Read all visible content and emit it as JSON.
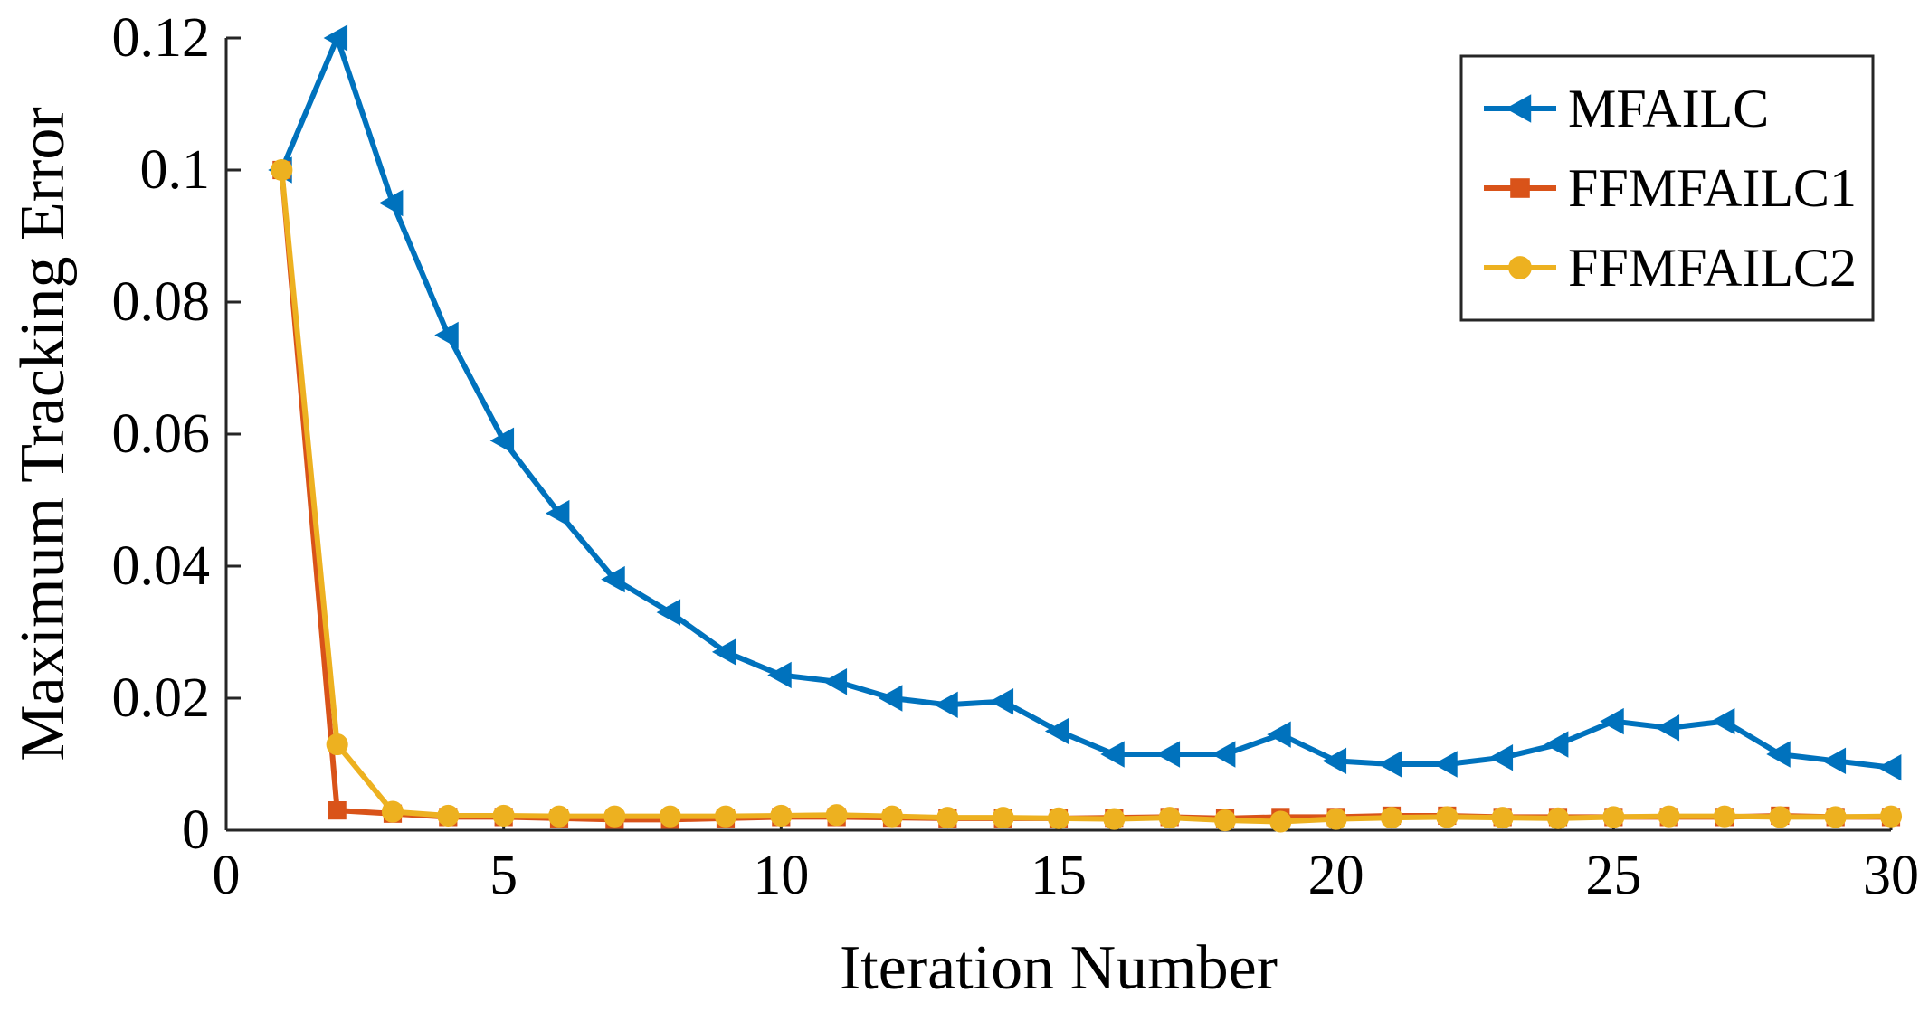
{
  "chart_data": {
    "type": "line",
    "title": "",
    "xlabel": "Iteration Number",
    "ylabel": "Maximum Tracking Error",
    "xlim": [
      0,
      30
    ],
    "ylim": [
      0,
      0.12
    ],
    "xticks": [
      0,
      5,
      10,
      15,
      20,
      25,
      30
    ],
    "xtick_labels": [
      "0",
      "5",
      "10",
      "15",
      "20",
      "25",
      "30"
    ],
    "yticks": [
      0,
      0.02,
      0.04,
      0.06,
      0.08,
      0.1,
      0.12
    ],
    "ytick_labels": [
      "0",
      "0.02",
      "0.04",
      "0.06",
      "0.08",
      "0.1",
      "0.12"
    ],
    "grid": false,
    "legend_position": "top-right",
    "x": [
      1,
      2,
      3,
      4,
      5,
      6,
      7,
      8,
      9,
      10,
      11,
      12,
      13,
      14,
      15,
      16,
      17,
      18,
      19,
      20,
      21,
      22,
      23,
      24,
      25,
      26,
      27,
      28,
      29,
      30
    ],
    "series": [
      {
        "name": "MFAILC",
        "color": "#0072BD",
        "marker": "triangle-left",
        "values": [
          0.1,
          0.12,
          0.095,
          0.075,
          0.059,
          0.048,
          0.038,
          0.033,
          0.027,
          0.0235,
          0.0225,
          0.02,
          0.019,
          0.0195,
          0.015,
          0.0115,
          0.0115,
          0.0115,
          0.0145,
          0.0105,
          0.01,
          0.01,
          0.011,
          0.013,
          0.0165,
          0.0155,
          0.0165,
          0.0115,
          0.0105,
          0.0095
        ]
      },
      {
        "name": "FFMFAILC1",
        "color": "#D95319",
        "marker": "square",
        "values": [
          0.1,
          0.003,
          0.0025,
          0.002,
          0.002,
          0.0018,
          0.0016,
          0.0016,
          0.0018,
          0.002,
          0.002,
          0.0019,
          0.0018,
          0.0018,
          0.0018,
          0.0019,
          0.002,
          0.0018,
          0.002,
          0.002,
          0.0022,
          0.0022,
          0.002,
          0.002,
          0.002,
          0.002,
          0.002,
          0.0022,
          0.002,
          0.002
        ]
      },
      {
        "name": "FFMFAILC2",
        "color": "#EDB120",
        "marker": "circle",
        "values": [
          0.1,
          0.013,
          0.0028,
          0.0022,
          0.0022,
          0.0021,
          0.0021,
          0.0021,
          0.0021,
          0.0022,
          0.0023,
          0.0021,
          0.0019,
          0.0019,
          0.0018,
          0.0017,
          0.0019,
          0.0015,
          0.0013,
          0.0017,
          0.0019,
          0.002,
          0.0019,
          0.0018,
          0.002,
          0.0021,
          0.0021,
          0.002,
          0.002,
          0.0021
        ]
      }
    ]
  }
}
